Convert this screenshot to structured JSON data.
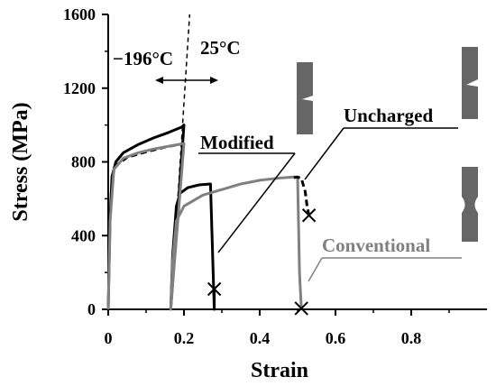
{
  "chart_data": {
    "type": "line",
    "title": "",
    "xlabel": "Strain",
    "ylabel": "Stress (MPa)",
    "xlim": [
      0,
      1.0
    ],
    "ylim": [
      0,
      1600
    ],
    "x_ticks": [
      "0",
      "0.2",
      "0.4",
      "0.6",
      "0.8"
    ],
    "y_ticks": [
      "0",
      "400",
      "800",
      "1200",
      "1600"
    ],
    "grid": false,
    "legend": "none",
    "series": [
      {
        "name": "",
        "color": "#000000",
        "style": "solid",
        "points": [
          [
            0,
            0
          ],
          [
            0.005,
            500
          ],
          [
            0.01,
            720
          ],
          [
            0.02,
            800
          ],
          [
            0.04,
            850
          ],
          [
            0.08,
            895
          ],
          [
            0.12,
            930
          ],
          [
            0.16,
            960
          ],
          [
            0.195,
            990
          ],
          [
            0.2,
            1000
          ],
          [
            0.165,
            0
          ],
          [
            0.17,
            290
          ],
          [
            0.18,
            560
          ],
          [
            0.19,
            630
          ],
          [
            0.21,
            660
          ],
          [
            0.24,
            675
          ],
          [
            0.27,
            680
          ],
          [
            0.28,
            0.0
          ],
          [
            0.28,
            110
          ]
        ]
      },
      {
        "name": "",
        "color": "#000000",
        "style": "dashed",
        "points": [
          [
            0.01,
            720
          ],
          [
            0.02,
            780
          ],
          [
            0.05,
            825
          ],
          [
            0.1,
            855
          ],
          [
            0.15,
            880
          ],
          [
            0.2,
            900
          ]
        ]
      },
      {
        "name": "",
        "color": "#808080",
        "style": "solid",
        "points": [
          [
            0,
            0
          ],
          [
            0.005,
            480
          ],
          [
            0.015,
            760
          ],
          [
            0.04,
            820
          ],
          [
            0.08,
            850
          ],
          [
            0.12,
            870
          ],
          [
            0.16,
            885
          ],
          [
            0.2,
            900
          ],
          [
            0.165,
            0
          ],
          [
            0.17,
            260
          ],
          [
            0.18,
            480
          ],
          [
            0.2,
            560
          ],
          [
            0.25,
            620
          ],
          [
            0.3,
            650
          ],
          [
            0.35,
            680
          ],
          [
            0.4,
            700
          ],
          [
            0.45,
            712
          ],
          [
            0.49,
            718
          ],
          [
            0.5,
            718
          ],
          [
            0.505,
            200
          ],
          [
            0.51,
            0
          ]
        ]
      },
      {
        "name": "",
        "color": "#000000",
        "style": "dashed",
        "points": [
          [
            0.49,
            715
          ],
          [
            0.5,
            718
          ],
          [
            0.51,
            710
          ],
          [
            0.52,
            640
          ],
          [
            0.525,
            560
          ],
          [
            0.53,
            510
          ]
        ]
      }
    ],
    "transition_line": {
      "points": [
        [
          0.165,
          0
        ],
        [
          0.215,
          1600
        ]
      ],
      "style": "dashed"
    },
    "fracture_markers": [
      [
        0.28,
        110
      ],
      [
        0.53,
        510
      ],
      [
        0.51,
        5
      ]
    ],
    "annotations": {
      "temp_low": "−196°C",
      "temp_high": "25°C",
      "modified": "Modified",
      "uncharged": "Uncharged",
      "conventional": "Conventional"
    }
  }
}
